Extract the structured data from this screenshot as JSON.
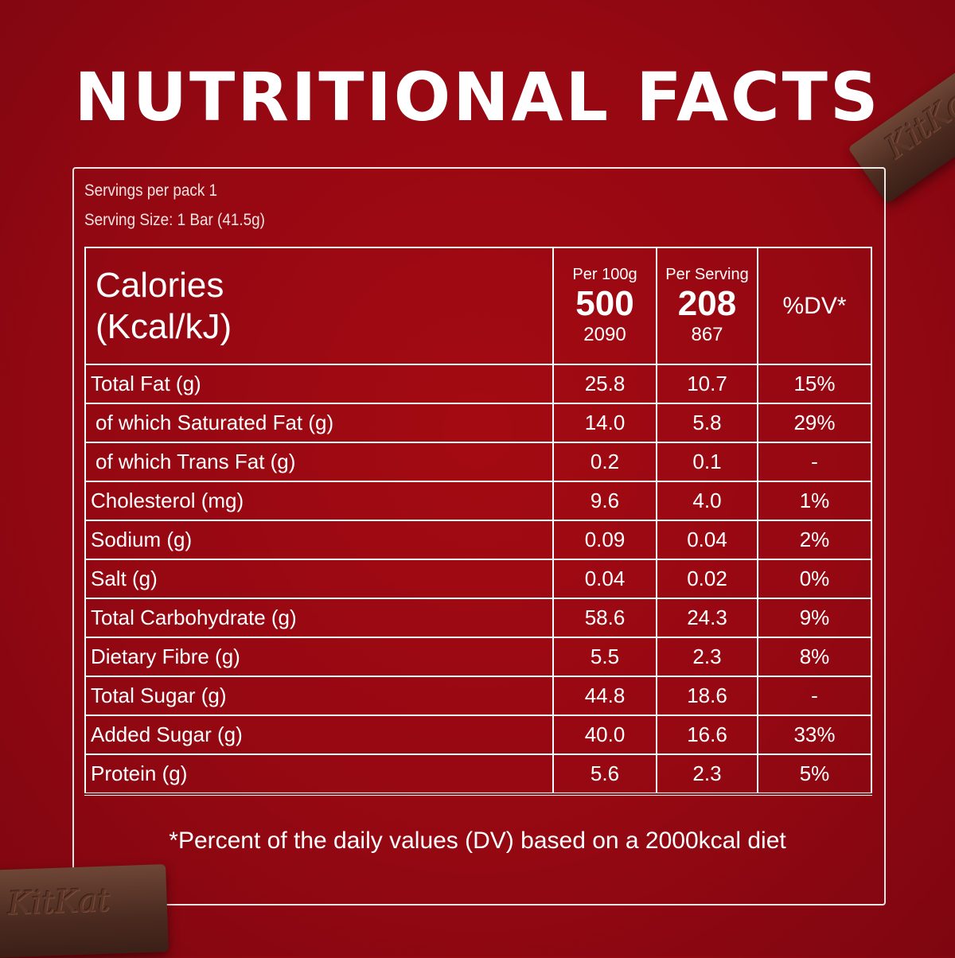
{
  "title": "NUTRITIONAL FACTS",
  "servings_per_pack": "Servings per pack 1",
  "serving_size": "Serving Size: 1 Bar (41.5g)",
  "brand_bar_text": "KitKat",
  "header": {
    "calories_line1": "Calories",
    "calories_line2": "(Kcal/kJ)",
    "per100g_label": "Per 100g",
    "per100g_kcal": "500",
    "per100g_kj": "2090",
    "perserving_label": "Per Serving",
    "perserving_kcal": "208",
    "perserving_kj": "867",
    "dv_label": "%DV*"
  },
  "rows": [
    {
      "name": "Total Fat (g)",
      "per100": "25.8",
      "serving": "10.7",
      "dv": "15%"
    },
    {
      "name": "of which Saturated Fat (g)",
      "per100": "14.0",
      "serving": "5.8",
      "dv": "29%"
    },
    {
      "name": "of which Trans Fat (g)",
      "per100": "0.2",
      "serving": "0.1",
      "dv": "-"
    },
    {
      "name": "Cholesterol (mg)",
      "per100": "9.6",
      "serving": "4.0",
      "dv": "1%"
    },
    {
      "name": "Sodium (g)",
      "per100": "0.09",
      "serving": "0.04",
      "dv": "2%"
    },
    {
      "name": "Salt (g)",
      "per100": "0.04",
      "serving": "0.02",
      "dv": "0%"
    },
    {
      "name": "Total Carbohydrate (g)",
      "per100": "58.6",
      "serving": "24.3",
      "dv": "9%"
    },
    {
      "name": "Dietary Fibre (g)",
      "per100": "5.5",
      "serving": "2.3",
      "dv": "8%"
    },
    {
      "name": "Total Sugar (g)",
      "per100": "44.8",
      "serving": "18.6",
      "dv": "-"
    },
    {
      "name": "Added Sugar (g)",
      "per100": "40.0",
      "serving": "16.6",
      "dv": "33%"
    },
    {
      "name": "Protein (g)",
      "per100": "5.6",
      "serving": "2.3",
      "dv": "5%"
    }
  ],
  "footnote": "*Percent of the daily values (DV) based on a 2000kcal diet",
  "colors": {
    "background": "#9c0a12",
    "text": "#ffffff",
    "chocolate": "#4a2a1f"
  }
}
